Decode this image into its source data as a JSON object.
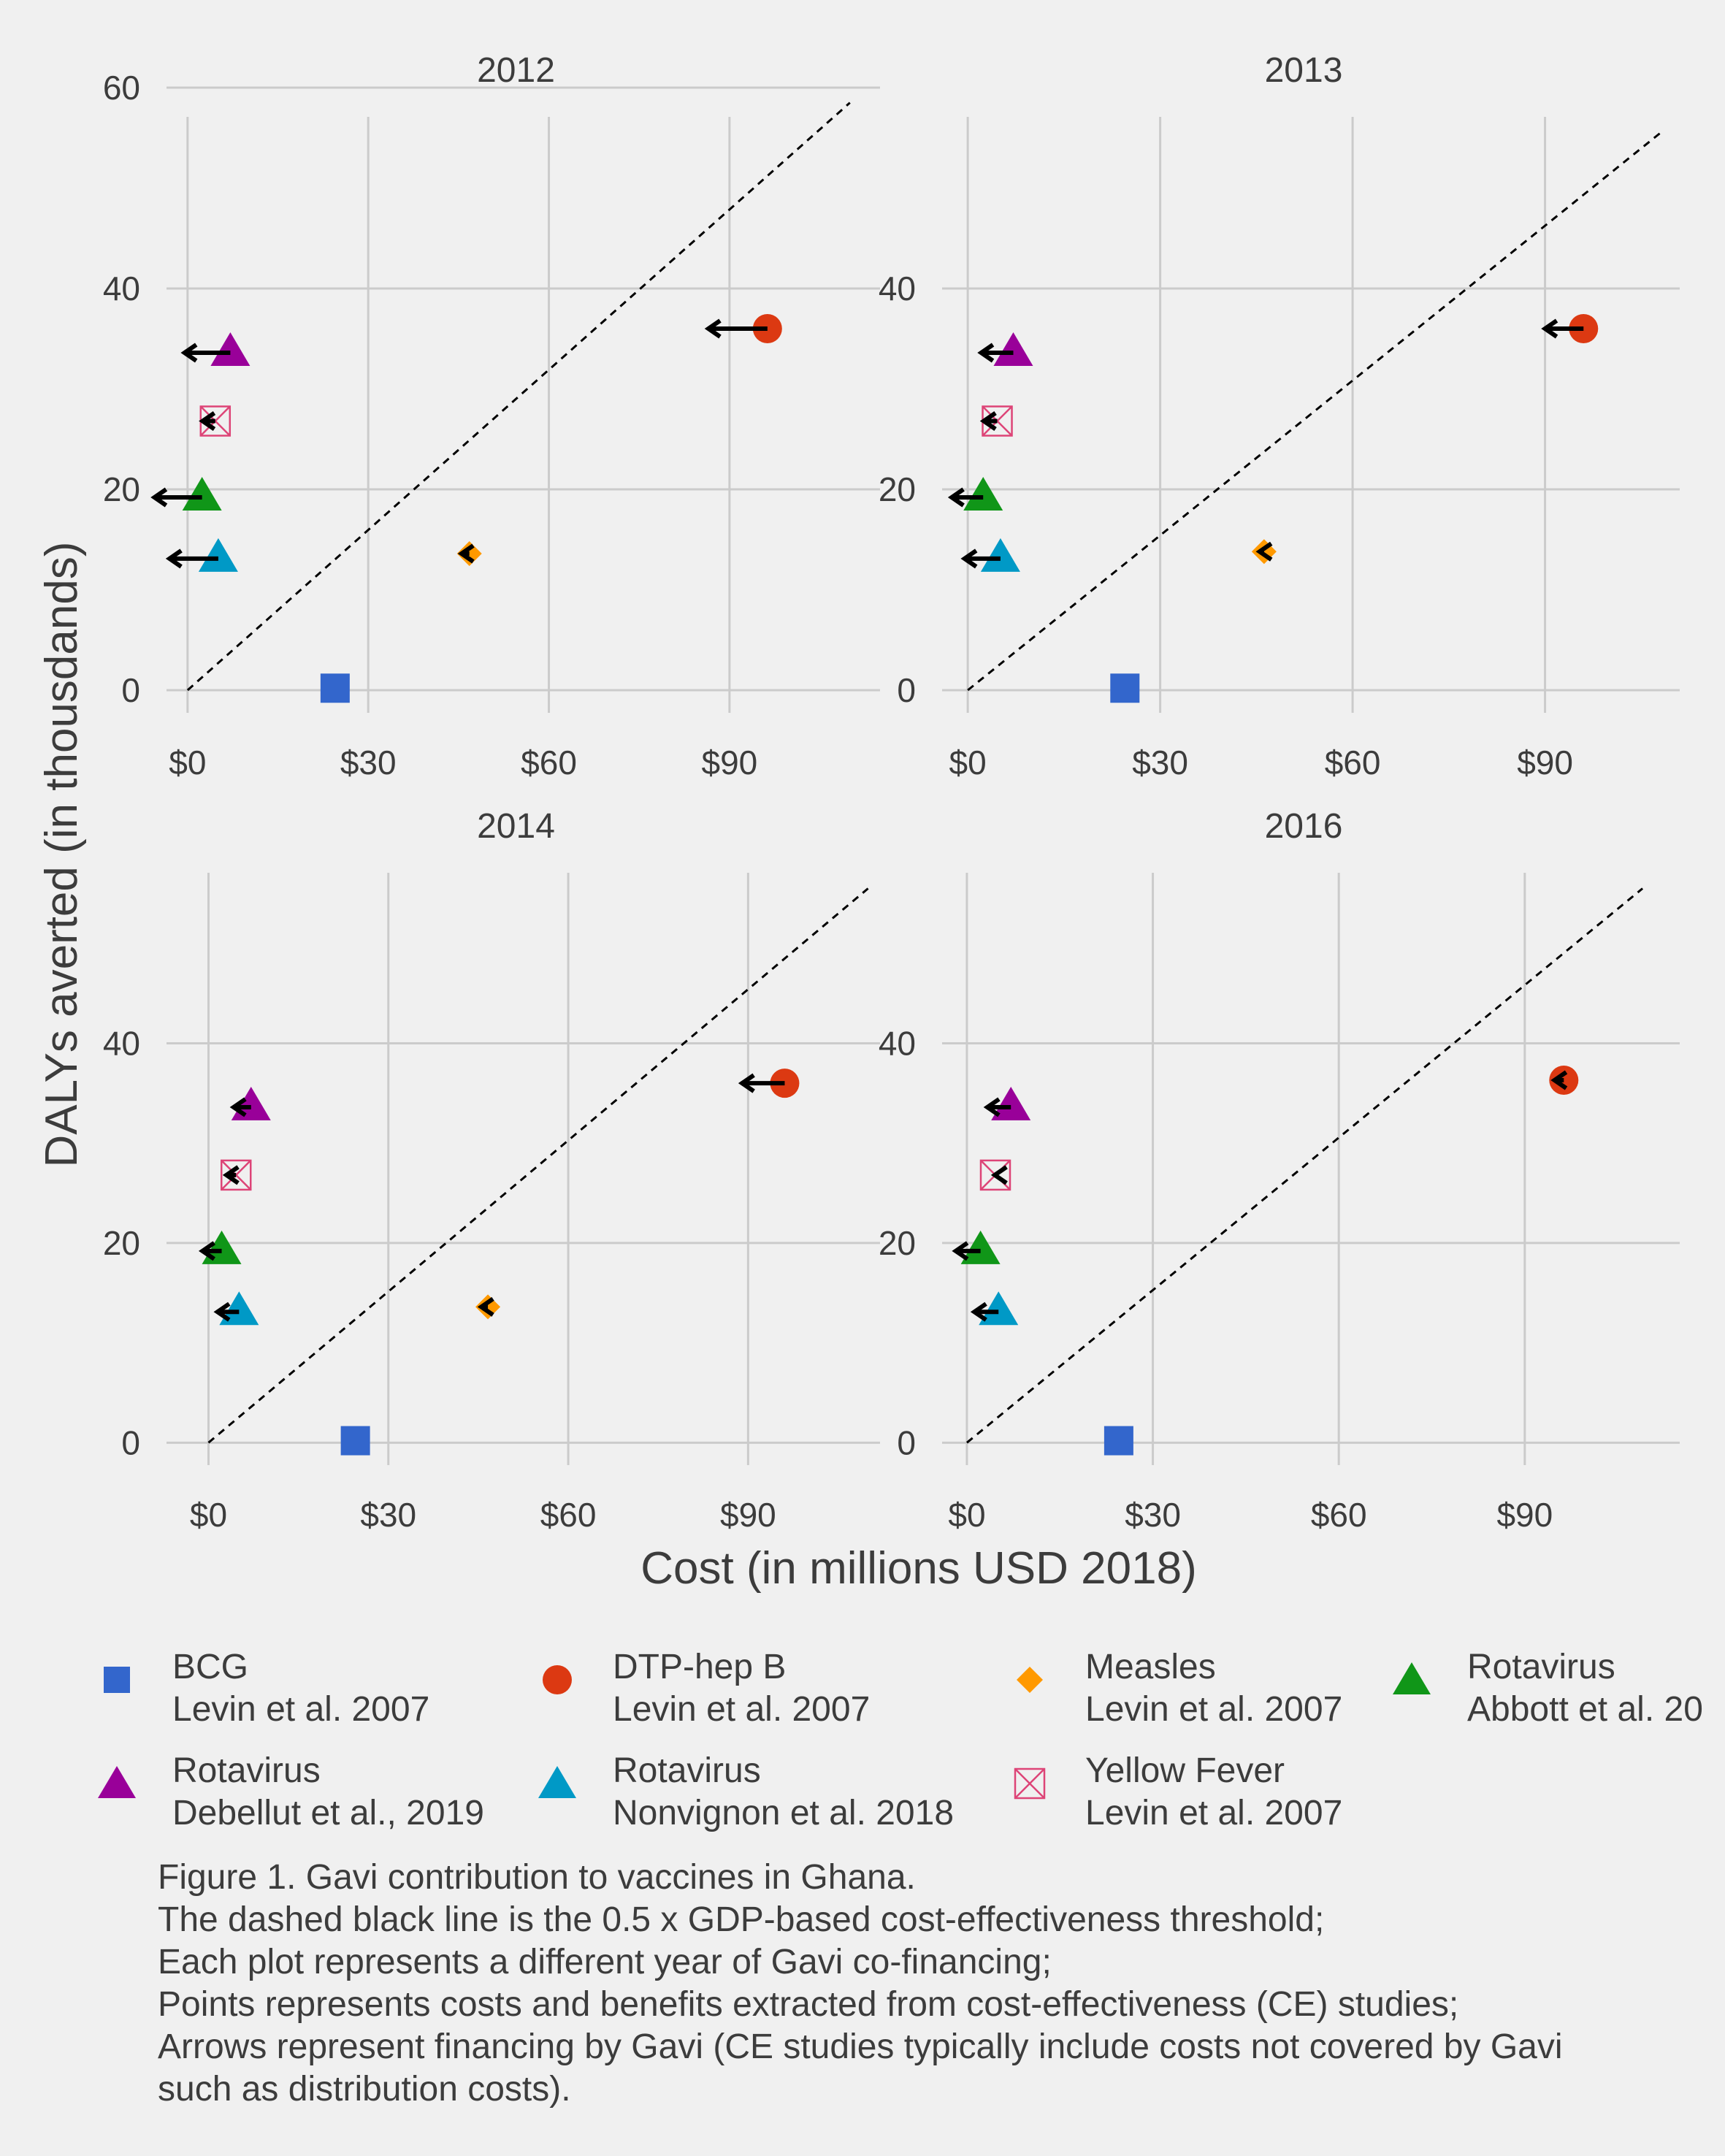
{
  "chart_data": {
    "type": "scatter",
    "xlabel": "Cost (in millions USD 2018)",
    "ylabel": "DALYs averted (in thousdands)",
    "x_tick_labels": [
      "$0",
      "$30",
      "$60",
      "$90"
    ],
    "grid": true,
    "legend_position": "bottom",
    "threshold_line": "dashed black",
    "series": [
      {
        "name": "BCG",
        "study": "Levin et al. 2007",
        "color": "#3366cc",
        "shape": "square"
      },
      {
        "name": "DTP-hep B",
        "study": "Levin et al. 2007",
        "color": "#dc3912",
        "shape": "circle"
      },
      {
        "name": "Measles",
        "study": "Levin et al. 2007",
        "color": "#ff9900",
        "shape": "diamond"
      },
      {
        "name": "Rotavirus",
        "study": "Abbott et al. 20",
        "color": "#109618",
        "shape": "triangle"
      },
      {
        "name": "Rotavirus",
        "study": "Debellut et al., 2019",
        "color": "#990099",
        "shape": "triangle"
      },
      {
        "name": "Rotavirus",
        "study": "Nonvignon et al. 2018",
        "color": "#0099c6",
        "shape": "triangle"
      },
      {
        "name": "Yellow Fever",
        "study": "Levin et al. 2007",
        "color": "#dd4477",
        "shape": "boxx"
      }
    ],
    "panels": [
      {
        "title": "2012",
        "xlim": [
          -3.5,
          115
        ],
        "ylim": [
          -4,
          60
        ],
        "y_ticks": [
          0,
          20,
          40,
          60
        ],
        "threshold_end": [
          110,
          58.5
        ],
        "points": [
          {
            "s": 0,
            "x": 24.5,
            "y": 0.2,
            "arrow_to": null
          },
          {
            "s": 1,
            "x": 96.3,
            "y": 36,
            "arrow_to": 86.5
          },
          {
            "s": 2,
            "x": 46.8,
            "y": 13.6,
            "arrow_to": 45.5
          },
          {
            "s": 3,
            "x": 2.4,
            "y": 19.2,
            "arrow_to": -5.5
          },
          {
            "s": 4,
            "x": 7.1,
            "y": 33.6,
            "arrow_to": -0.5
          },
          {
            "s": 5,
            "x": 5.1,
            "y": 13.1,
            "arrow_to": -3
          },
          {
            "s": 6,
            "x": 4.6,
            "y": 26.8,
            "arrow_to": 2.5
          }
        ]
      },
      {
        "title": "2013",
        "xlim": [
          -4,
          111
        ],
        "ylim": [
          -4,
          60
        ],
        "y_ticks": [
          0,
          20,
          40
        ],
        "threshold_end": [
          108,
          55.5
        ],
        "points": [
          {
            "s": 0,
            "x": 24.5,
            "y": 0.2,
            "arrow_to": null
          },
          {
            "s": 1,
            "x": 96,
            "y": 36,
            "arrow_to": 90
          },
          {
            "s": 2,
            "x": 46.2,
            "y": 13.8,
            "arrow_to": 45.5
          },
          {
            "s": 3,
            "x": 2.4,
            "y": 19.2,
            "arrow_to": -2.5
          },
          {
            "s": 4,
            "x": 7.1,
            "y": 33.6,
            "arrow_to": 2.1
          },
          {
            "s": 5,
            "x": 5.1,
            "y": 13.1,
            "arrow_to": -0.5
          },
          {
            "s": 6,
            "x": 4.6,
            "y": 26.8,
            "arrow_to": 2.5
          }
        ]
      },
      {
        "title": "2014",
        "xlim": [
          -7,
          112
        ],
        "ylim": [
          -4,
          60
        ],
        "y_ticks": [
          0,
          20,
          40
        ],
        "threshold_end": [
          110,
          55.5
        ],
        "points": [
          {
            "s": 0,
            "x": 24.5,
            "y": 0.2,
            "arrow_to": null
          },
          {
            "s": 1,
            "x": 96.1,
            "y": 36,
            "arrow_to": 89
          },
          {
            "s": 2,
            "x": 46.6,
            "y": 13.6,
            "arrow_to": 45.5
          },
          {
            "s": 3,
            "x": 2.2,
            "y": 19.2,
            "arrow_to": -1
          },
          {
            "s": 4,
            "x": 7.1,
            "y": 33.6,
            "arrow_to": 4.2
          },
          {
            "s": 5,
            "x": 5.1,
            "y": 13.1,
            "arrow_to": 1.5
          },
          {
            "s": 6,
            "x": 4.6,
            "y": 26.8,
            "arrow_to": 3
          }
        ]
      },
      {
        "title": "2016",
        "xlim": [
          -4,
          115
        ],
        "ylim": [
          -4,
          60
        ],
        "y_ticks": [
          0,
          20,
          40
        ],
        "threshold_end": [
          109,
          55.5
        ],
        "points": [
          {
            "s": 0,
            "x": 24.5,
            "y": 0.2,
            "arrow_to": null
          },
          {
            "s": 1,
            "x": 96.3,
            "y": 36.3,
            "arrow_to": 94.8
          },
          {
            "s": 3,
            "x": 2.2,
            "y": 19.2,
            "arrow_to": -1.8
          },
          {
            "s": 4,
            "x": 7.1,
            "y": 33.6,
            "arrow_to": 3.3
          },
          {
            "s": 5,
            "x": 5.1,
            "y": 13.1,
            "arrow_to": 1.2
          },
          {
            "s": 6,
            "x": 4.6,
            "y": 26.8,
            "arrow_to": 4.5
          }
        ]
      }
    ]
  },
  "legend": [
    {
      "name": "BCG",
      "study": "Levin et al. 2007"
    },
    {
      "name": "DTP-hep B",
      "study": "Levin et al. 2007"
    },
    {
      "name": "Measles",
      "study": "Levin et al. 2007"
    },
    {
      "name": "Rotavirus",
      "study": "Abbott et al. 20"
    },
    {
      "name": "Rotavirus",
      "study": "Debellut et al., 2019"
    },
    {
      "name": "Rotavirus",
      "study": "Nonvignon et al. 2018"
    },
    {
      "name": "Yellow Fever",
      "study": "Levin et al. 2007"
    }
  ],
  "caption": [
    "Figure 1. Gavi contribution to vaccines in Ghana.",
    "The dashed black line is the 0.5 x GDP-based cost-effectiveness threshold;",
    "Each plot represents a different year of Gavi co-financing;",
    "Points represents costs and benefits extracted from cost-effectiveness (CE) studies;",
    "Arrows represent financing by Gavi (CE studies typically include costs not covered by Gavi",
    "such as distribution costs)."
  ]
}
